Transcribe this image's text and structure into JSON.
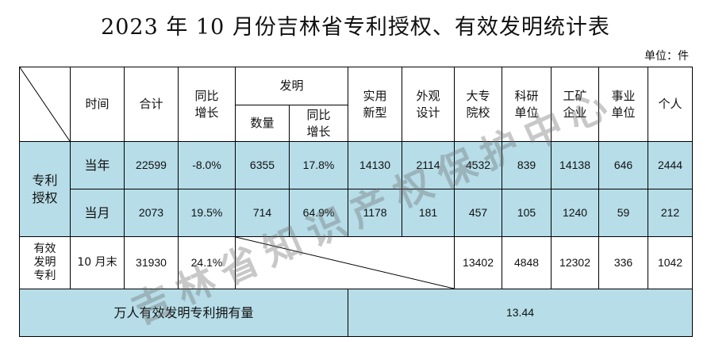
{
  "title": "2023 年 10 月份吉林省专利授权、有效发明统计表",
  "unit_label": "单位：件",
  "watermark": "吉林省知识产权保护中心",
  "colors": {
    "header_bg": "#ffffff",
    "blue_bg": "#b6dde8",
    "border": "#000000"
  },
  "header": {
    "time": "时间",
    "total": "合计",
    "yoy": "同比\n增长",
    "invention": "发明",
    "inv_count": "数量",
    "inv_yoy": "同比\n增长",
    "utility": "实用\n新型",
    "design": "外观\n设计",
    "college": "大专\n院校",
    "research": "科研\n单位",
    "enterprise": "工矿\n企业",
    "institution": "事业\n单位",
    "individual": "个人"
  },
  "group_patent": "专利\n授权",
  "rows": [
    {
      "label": "当年",
      "total": "22599",
      "yoy": "-8.0%",
      "inv_count": "6355",
      "inv_yoy": "17.8%",
      "utility": "14130",
      "design": "2114",
      "college": "4532",
      "research": "839",
      "enterprise": "14138",
      "institution": "646",
      "individual": "2444"
    },
    {
      "label": "当月",
      "total": "2073",
      "yoy": "19.5%",
      "inv_count": "714",
      "inv_yoy": "64.9%",
      "utility": "1178",
      "design": "181",
      "college": "457",
      "research": "105",
      "enterprise": "1240",
      "institution": "59",
      "individual": "212"
    }
  ],
  "valid": {
    "group": "有效\n发明\n专利",
    "label": "10 月末",
    "total": "31930",
    "yoy": "24.1%",
    "college": "13402",
    "research": "4848",
    "enterprise": "12302",
    "institution": "336",
    "individual": "1042"
  },
  "per_capita": {
    "label": "万人有效发明专利拥有量",
    "value": "13.44"
  }
}
